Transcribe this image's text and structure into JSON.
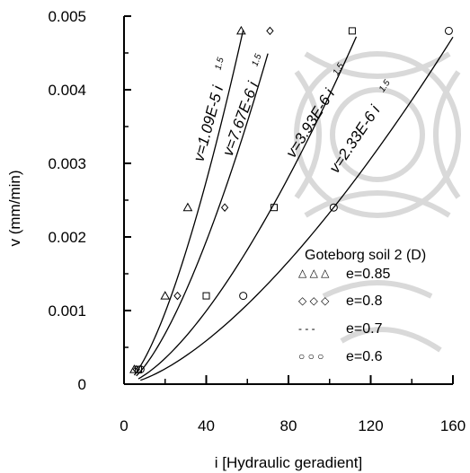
{
  "chart_data": {
    "type": "scatter",
    "title": "",
    "xlabel": "i [Hydraulic geradient]",
    "ylabel": "v (mm/min)",
    "xlim": [
      0,
      160
    ],
    "ylim": [
      0,
      0.005
    ],
    "x_ticks": [
      0,
      40,
      80,
      120,
      160
    ],
    "x_tick_labels": [
      "0",
      "40",
      "80",
      "120",
      "160"
    ],
    "y_ticks": [
      0,
      0.001,
      0.002,
      0.003,
      0.004,
      0.005
    ],
    "y_tick_labels": [
      "0",
      "0.001",
      "0.002",
      "0.003",
      "0.004",
      "0.005"
    ],
    "grid": false,
    "legend": {
      "title": "Goteborg soil 2 (D)",
      "placement": "right"
    },
    "series": [
      {
        "name": "e=0.85",
        "marker": "triangle",
        "marker_text": "△ △ △",
        "points": [
          [
            5,
            0.0002
          ],
          [
            20,
            0.0012
          ],
          [
            31,
            0.0024
          ],
          [
            57,
            0.0048
          ]
        ]
      },
      {
        "name": "e=0.8",
        "marker": "diamond",
        "marker_text": "◇ ◇ ◇",
        "points": [
          [
            6,
            0.0002
          ],
          [
            26,
            0.0012
          ],
          [
            49,
            0.0024
          ],
          [
            71,
            0.0048
          ]
        ]
      },
      {
        "name": "e=0.7",
        "marker": "square",
        "marker_text": "- - -",
        "points": [
          [
            7,
            0.0002
          ],
          [
            40,
            0.0012
          ],
          [
            73,
            0.0024
          ],
          [
            111,
            0.0048
          ]
        ]
      },
      {
        "name": "e=0.6",
        "marker": "circle",
        "marker_text": "○ ○ ○",
        "points": [
          [
            8,
            0.0002
          ],
          [
            58,
            0.0012
          ],
          [
            102,
            0.0024
          ],
          [
            158,
            0.0048
          ]
        ]
      }
    ],
    "fits": [
      {
        "coef": 1.09e-05,
        "label": "v=1.09E-5 i",
        "exponent_label": "1.5",
        "power": 1.5,
        "x_range": [
          5,
          58
        ]
      },
      {
        "coef": 7.67e-06,
        "label": "v=7.67E-6 i",
        "exponent_label": "1.5",
        "power": 1.5,
        "x_range": [
          6,
          70
        ]
      },
      {
        "coef": 3.93e-06,
        "label": "v=3.93E-6 i",
        "exponent_label": "1.5",
        "power": 1.5,
        "x_range": [
          7,
          113
        ]
      },
      {
        "coef": 2.33e-06,
        "label": "v=2.33E-6 i",
        "exponent_label": "1.5",
        "power": 1.5,
        "x_range": [
          8,
          160
        ]
      }
    ]
  }
}
